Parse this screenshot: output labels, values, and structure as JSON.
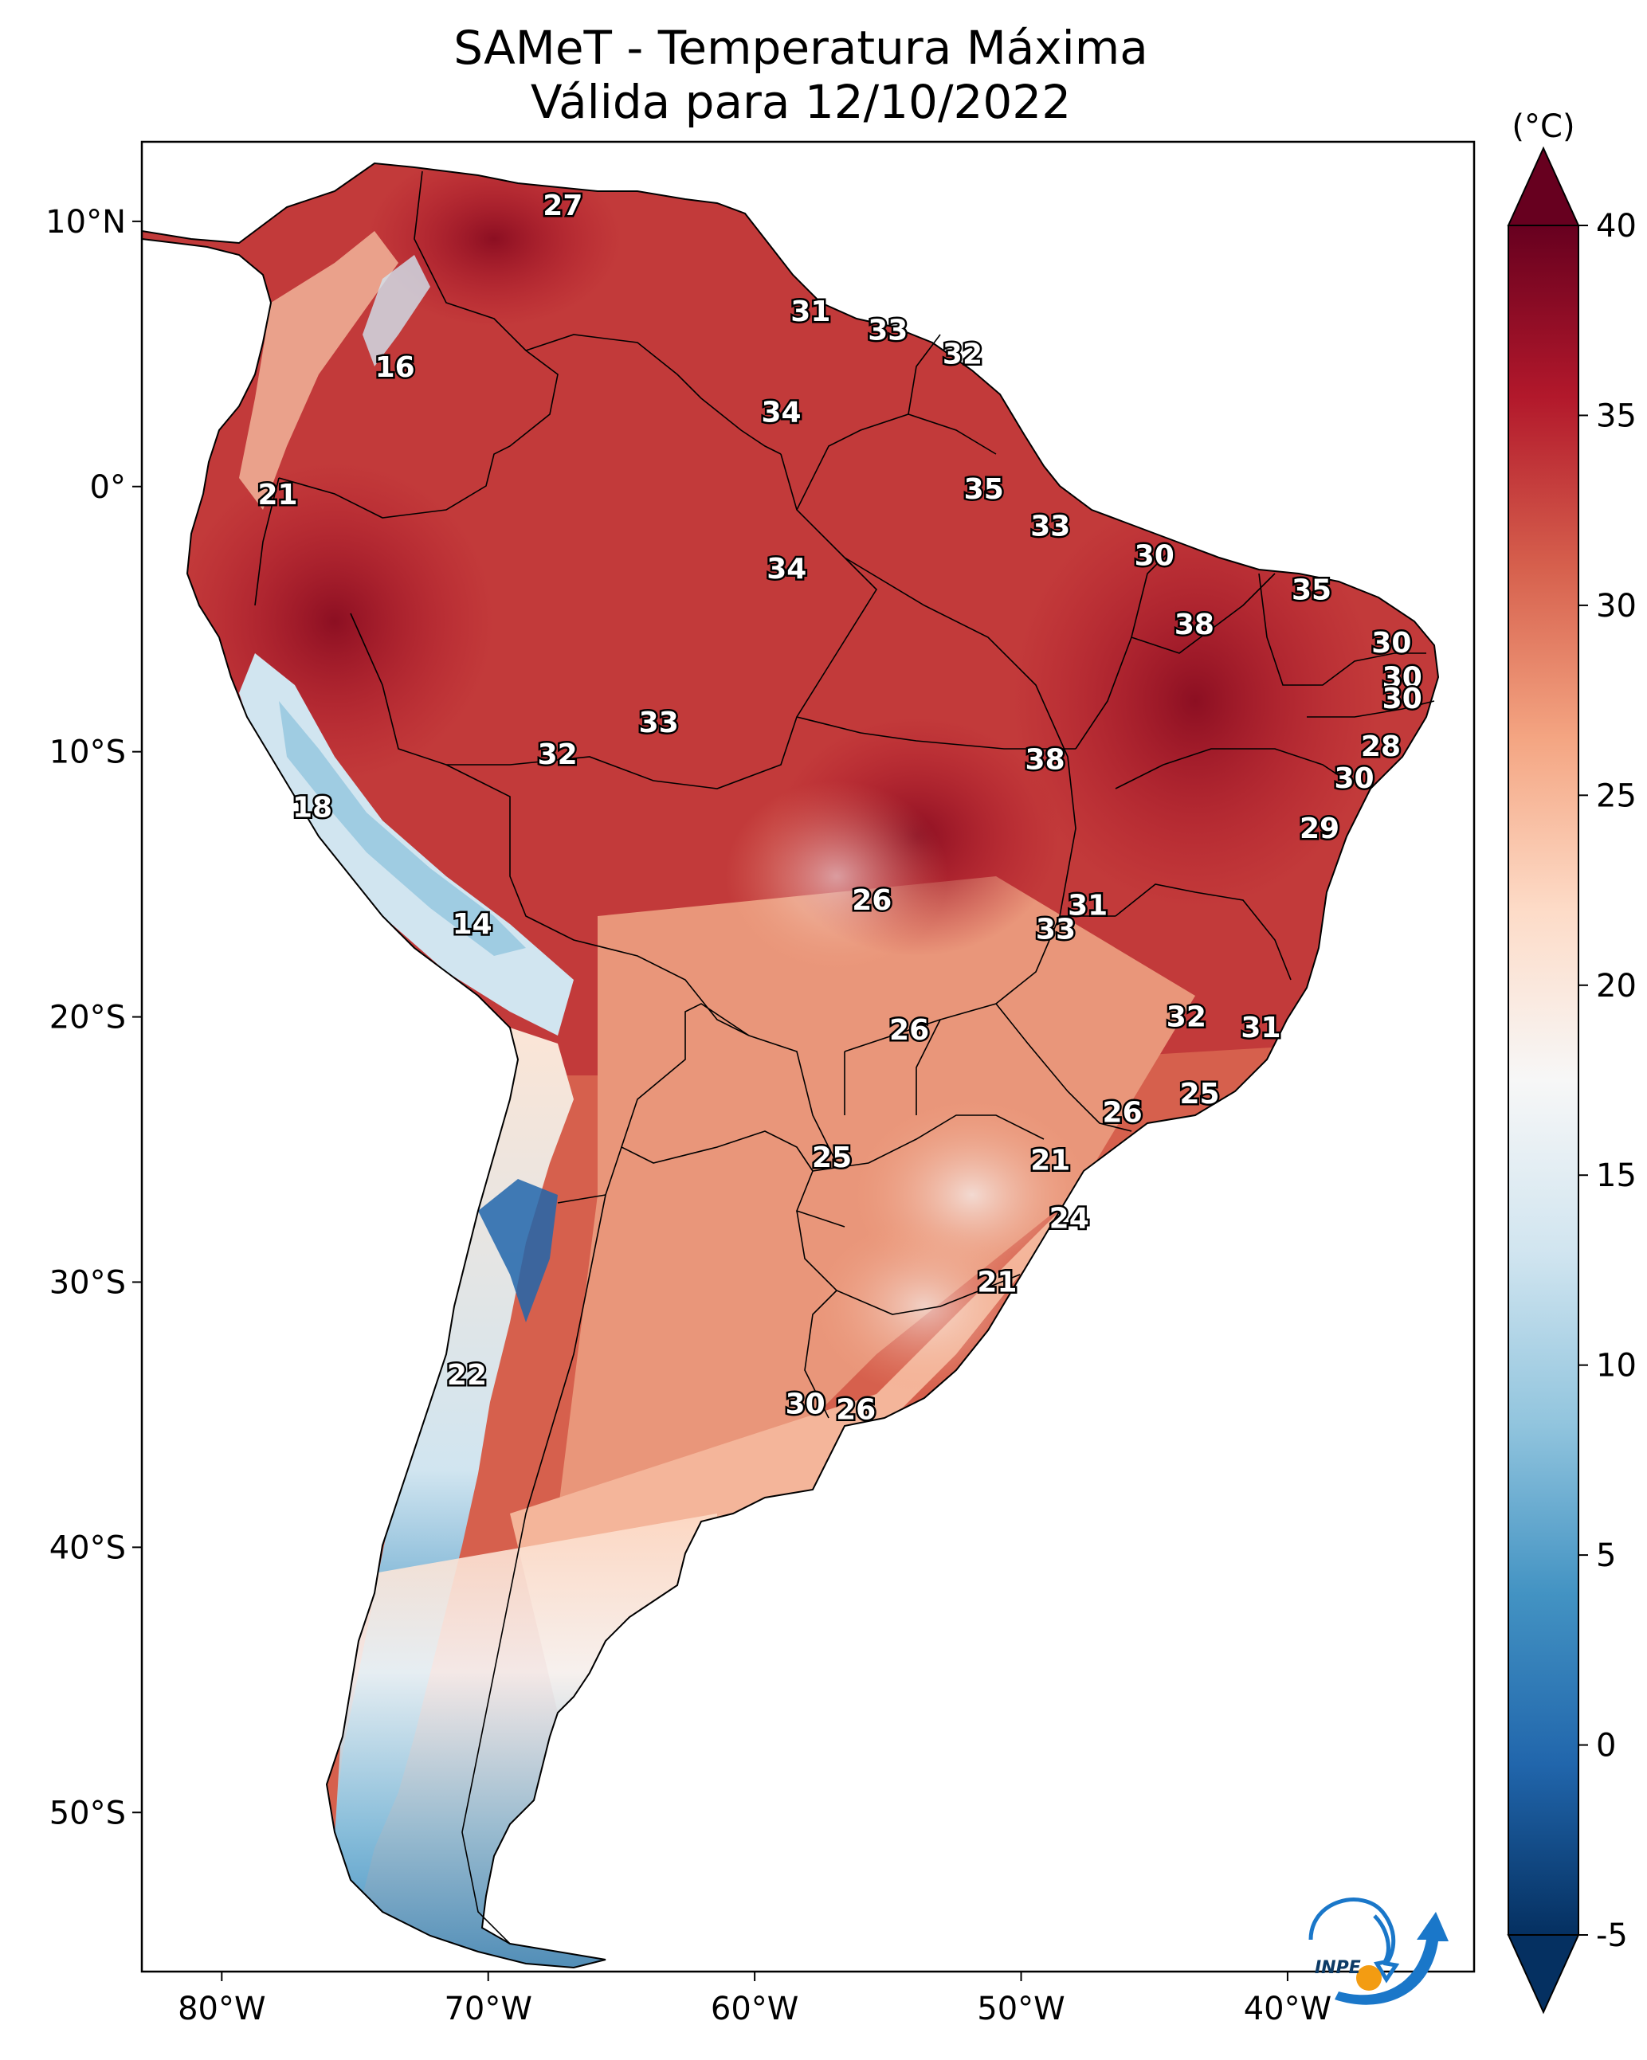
{
  "title": {
    "line1": "SAMeT - Temperatura Máxima",
    "line2": "Válida para 12/10/2022"
  },
  "colorbar": {
    "unit": "(°C)",
    "ticks": [
      "40",
      "35",
      "30",
      "25",
      "20",
      "15",
      "10",
      "5",
      "0",
      "-5"
    ],
    "tick_values": [
      40,
      35,
      30,
      25,
      20,
      15,
      10,
      5,
      0,
      -5
    ],
    "range": [
      -5,
      40
    ],
    "colors": [
      "#053061",
      "#2166ac",
      "#4393c3",
      "#92c5de",
      "#d1e5f0",
      "#f7f7f7",
      "#fddbc7",
      "#f4a582",
      "#d6604d",
      "#b2182b",
      "#67001f"
    ]
  },
  "axes": {
    "lat_labels": [
      "10°N",
      "0°",
      "10°S",
      "20°S",
      "30°S",
      "40°S",
      "50°S"
    ],
    "lat_values": [
      10,
      0,
      -10,
      -20,
      -30,
      -40,
      -50
    ],
    "lon_labels": [
      "80°W",
      "70°W",
      "60°W",
      "50°W",
      "40°W"
    ],
    "lon_values": [
      -80,
      -70,
      -60,
      -50,
      -40
    ],
    "lon_range": [
      -83,
      -33
    ],
    "lat_range": [
      -56,
      13
    ]
  },
  "logo": {
    "text": "INPE"
  },
  "chart_data": {
    "type": "heatmap",
    "title": "SAMeT - Temperatura Máxima Válida para 12/10/2022",
    "xlabel": "",
    "ylabel": "",
    "unit": "°C",
    "station_values": [
      {
        "label": "27",
        "lon": -67.2,
        "lat": 10.6
      },
      {
        "label": "31",
        "lon": -57.9,
        "lat": 6.6
      },
      {
        "label": "33",
        "lon": -55.0,
        "lat": 5.9
      },
      {
        "label": "32",
        "lon": -52.2,
        "lat": 5.0
      },
      {
        "label": "16",
        "lon": -73.5,
        "lat": 4.5
      },
      {
        "label": "34",
        "lon": -59.0,
        "lat": 2.8
      },
      {
        "label": "21",
        "lon": -77.9,
        "lat": -0.3
      },
      {
        "label": "35",
        "lon": -51.4,
        "lat": -0.1
      },
      {
        "label": "33",
        "lon": -48.9,
        "lat": -1.5
      },
      {
        "label": "30",
        "lon": -45.0,
        "lat": -2.6
      },
      {
        "label": "34",
        "lon": -58.8,
        "lat": -3.1
      },
      {
        "label": "35",
        "lon": -39.1,
        "lat": -3.9
      },
      {
        "label": "38",
        "lon": -43.5,
        "lat": -5.2
      },
      {
        "label": "30",
        "lon": -36.1,
        "lat": -5.9
      },
      {
        "label": "30",
        "lon": -35.7,
        "lat": -7.2
      },
      {
        "label": "30",
        "lon": -35.7,
        "lat": -8.0
      },
      {
        "label": "33",
        "lon": -63.6,
        "lat": -8.9
      },
      {
        "label": "28",
        "lon": -36.5,
        "lat": -9.8
      },
      {
        "label": "32",
        "lon": -67.4,
        "lat": -10.1
      },
      {
        "label": "38",
        "lon": -49.1,
        "lat": -10.3
      },
      {
        "label": "30",
        "lon": -37.5,
        "lat": -11.0
      },
      {
        "label": "18",
        "lon": -76.6,
        "lat": -12.1
      },
      {
        "label": "29",
        "lon": -38.8,
        "lat": -12.9
      },
      {
        "label": "26",
        "lon": -55.6,
        "lat": -15.6
      },
      {
        "label": "31",
        "lon": -47.5,
        "lat": -15.8
      },
      {
        "label": "33",
        "lon": -48.7,
        "lat": -16.7
      },
      {
        "label": "14",
        "lon": -70.6,
        "lat": -16.5
      },
      {
        "label": "32",
        "lon": -43.8,
        "lat": -20.0
      },
      {
        "label": "31",
        "lon": -41.0,
        "lat": -20.4
      },
      {
        "label": "26",
        "lon": -54.2,
        "lat": -20.5
      },
      {
        "label": "25",
        "lon": -43.3,
        "lat": -22.9
      },
      {
        "label": "26",
        "lon": -46.2,
        "lat": -23.6
      },
      {
        "label": "25",
        "lon": -57.1,
        "lat": -25.3
      },
      {
        "label": "21",
        "lon": -48.9,
        "lat": -25.4
      },
      {
        "label": "24",
        "lon": -48.2,
        "lat": -27.6
      },
      {
        "label": "21",
        "lon": -50.9,
        "lat": -30.0
      },
      {
        "label": "22",
        "lon": -70.8,
        "lat": -33.5
      },
      {
        "label": "30",
        "lon": -58.1,
        "lat": -34.6
      },
      {
        "label": "26",
        "lon": -56.2,
        "lat": -34.8
      }
    ]
  }
}
